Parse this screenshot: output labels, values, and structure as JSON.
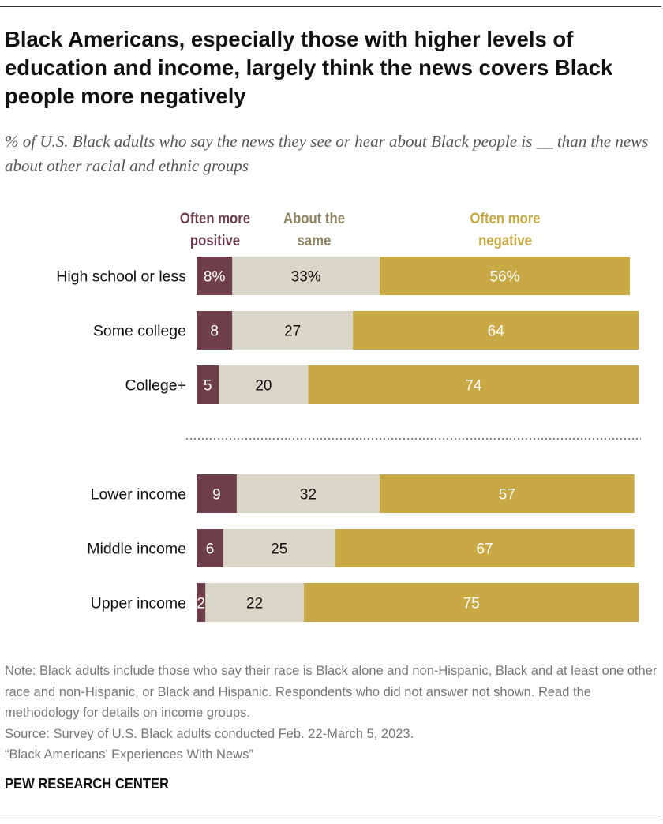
{
  "title": "Black Americans, especially those with higher levels of education and income, largely think the news covers Black people more negatively",
  "subtitle": "% of U.S. Black adults who say the news they see or hear about Black people is __ than the news about other racial and ethnic groups",
  "chart_data": {
    "type": "bar",
    "orientation": "horizontal-stacked",
    "categories": [
      "High school or less",
      "Some college",
      "College+",
      "Lower income",
      "Middle income",
      "Upper income"
    ],
    "groups": [
      [
        "High school or less",
        "Some college",
        "College+"
      ],
      [
        "Lower income",
        "Middle income",
        "Upper income"
      ]
    ],
    "series": [
      {
        "name": "Often more positive",
        "values": [
          8,
          8,
          5,
          9,
          6,
          2
        ],
        "color": "#6e3f4a",
        "label_color": "#6e3f4a",
        "text_color": "#ffffff"
      },
      {
        "name": "About the same",
        "values": [
          33,
          27,
          20,
          32,
          25,
          22
        ],
        "color": "#dad7c9",
        "label_color": "#8c8462",
        "text_color": "#111111"
      },
      {
        "name": "Often more negative",
        "values": [
          56,
          64,
          74,
          57,
          67,
          75
        ],
        "color": "#c9a846",
        "label_color": "#c9a846",
        "text_color": "#ffffff"
      }
    ],
    "first_row_labels": [
      "8%",
      "33%",
      "56%"
    ],
    "legend_placement": "top",
    "xlim": [
      0,
      100
    ],
    "grid": false
  },
  "legend": {
    "positive": "Often more positive",
    "same": "About the same",
    "negative": "Often more negative"
  },
  "notes": {
    "note": "Note: Black adults include those who say their race is Black alone and non-Hispanic, Black and at least one other race and non-Hispanic, or Black and Hispanic. Respondents who did not answer not shown. Read the methodology for details on income groups.",
    "source": "Source: Survey of U.S. Black adults conducted Feb. 22-March 5, 2023.",
    "report": "“Black Americans’ Experiences With News”"
  },
  "brand": "PEW RESEARCH CENTER"
}
